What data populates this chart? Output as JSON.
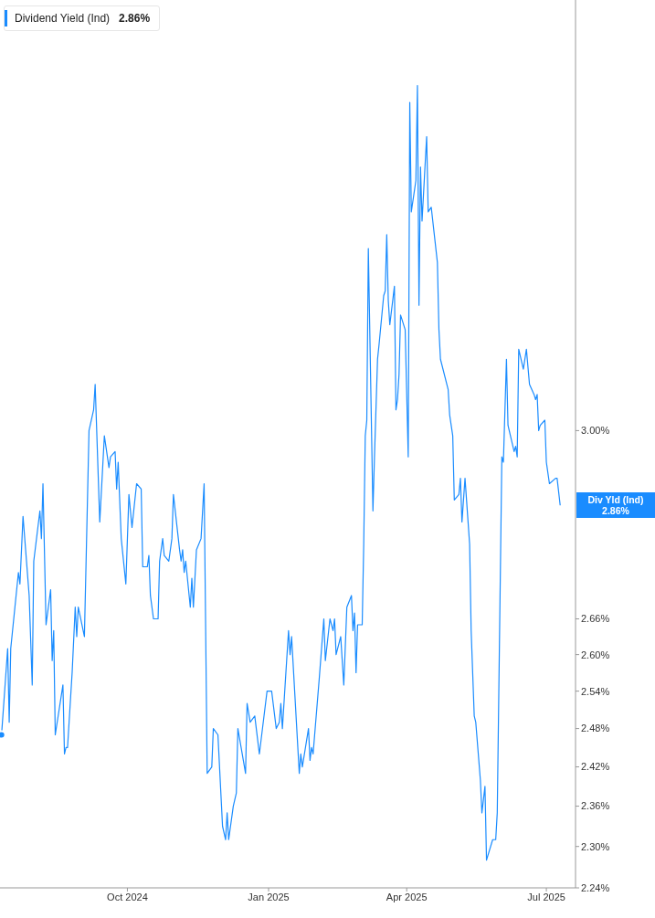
{
  "chart_data": {
    "type": "line",
    "legend": "top left",
    "log": "y",
    "annotations": [
      "Div Yld (Ind) 2.86%",
      "2.86%"
    ],
    "xlim": [
      "2024-07-10",
      "2025-07-20"
    ],
    "xticks": [
      {
        "value": "2024-10-01",
        "label": "Oct 2024"
      },
      {
        "value": "2025-01-01",
        "label": "Jan 2025"
      },
      {
        "value": "2025-04-01",
        "label": "Apr 2025"
      },
      {
        "value": "2025-07-01",
        "label": "Jul 2025"
      }
    ],
    "ylim": [
      2.24,
      3.95
    ],
    "yticks": [
      {
        "value": 2.24,
        "label": "2.24%"
      },
      {
        "value": 2.3,
        "label": "2.30%"
      },
      {
        "value": 2.36,
        "label": "2.36%"
      },
      {
        "value": 2.42,
        "label": "2.42%"
      },
      {
        "value": 2.48,
        "label": "2.48%"
      },
      {
        "value": 2.54,
        "label": "2.54%"
      },
      {
        "value": 2.6,
        "label": "2.60%"
      },
      {
        "value": 2.66,
        "label": "2.66%"
      },
      {
        "value": 3.0,
        "label": "3.00%"
      }
    ],
    "x": [
      "2024-07-11",
      "2024-07-15",
      "2024-07-16",
      "2024-07-17",
      "2024-07-22",
      "2024-07-23",
      "2024-07-25",
      "2024-07-29",
      "2024-07-31",
      "2024-08-01",
      "2024-08-05",
      "2024-08-06",
      "2024-08-07",
      "2024-08-09",
      "2024-08-12",
      "2024-08-13",
      "2024-08-14",
      "2024-08-15",
      "2024-08-20",
      "2024-08-21",
      "2024-08-22",
      "2024-08-23",
      "2024-08-26",
      "2024-08-28",
      "2024-08-29",
      "2024-08-30",
      "2024-09-03",
      "2024-09-06",
      "2024-09-09",
      "2024-09-10",
      "2024-09-13",
      "2024-09-16",
      "2024-09-19",
      "2024-09-20",
      "2024-09-23",
      "2024-09-24",
      "2024-09-25",
      "2024-09-27",
      "2024-09-30",
      "2024-10-02",
      "2024-10-04",
      "2024-10-07",
      "2024-10-10",
      "2024-10-11",
      "2024-10-14",
      "2024-10-15",
      "2024-10-16",
      "2024-10-18",
      "2024-10-21",
      "2024-10-22",
      "2024-10-24",
      "2024-10-25",
      "2024-10-28",
      "2024-10-30",
      "2024-10-31",
      "2024-11-04",
      "2024-11-05",
      "2024-11-06",
      "2024-11-07",
      "2024-11-08",
      "2024-11-11",
      "2024-11-12",
      "2024-11-13",
      "2024-11-15",
      "2024-11-18",
      "2024-11-20",
      "2024-11-22",
      "2024-11-25",
      "2024-11-26",
      "2024-11-29",
      "2024-12-02",
      "2024-12-04",
      "2024-12-05",
      "2024-12-06",
      "2024-12-09",
      "2024-12-11",
      "2024-12-12",
      "2024-12-17",
      "2024-12-18",
      "2024-12-20",
      "2024-12-23",
      "2024-12-26",
      "2024-12-31",
      "2025-01-02",
      "2025-01-03",
      "2025-01-06",
      "2025-01-08",
      "2025-01-09",
      "2025-01-10",
      "2025-01-14",
      "2025-01-15",
      "2025-01-16",
      "2025-01-21",
      "2025-01-22",
      "2025-01-23",
      "2025-01-27",
      "2025-01-28",
      "2025-01-29",
      "2025-01-30",
      "2025-02-03",
      "2025-02-06",
      "2025-02-07",
      "2025-02-10",
      "2025-02-12",
      "2025-02-13",
      "2025-02-14",
      "2025-02-17",
      "2025-02-19",
      "2025-02-21",
      "2025-02-24",
      "2025-02-25",
      "2025-02-26",
      "2025-02-27",
      "2025-02-28",
      "2025-03-03",
      "2025-03-04",
      "2025-03-05",
      "2025-03-06",
      "2025-03-07",
      "2025-03-10",
      "2025-03-11",
      "2025-03-13",
      "2025-03-14",
      "2025-03-17",
      "2025-03-18",
      "2025-03-19",
      "2025-03-20",
      "2025-03-21",
      "2025-03-24",
      "2025-03-25",
      "2025-03-26",
      "2025-03-27",
      "2025-03-28",
      "2025-03-31",
      "2025-04-02",
      "2025-04-03",
      "2025-04-04",
      "2025-04-07",
      "2025-04-08",
      "2025-04-09",
      "2025-04-10",
      "2025-04-11",
      "2025-04-14",
      "2025-04-15",
      "2025-04-17",
      "2025-04-21",
      "2025-04-22",
      "2025-04-23",
      "2025-04-28",
      "2025-04-29",
      "2025-05-01",
      "2025-05-02",
      "2025-05-05",
      "2025-05-06",
      "2025-05-07",
      "2025-05-09",
      "2025-05-12",
      "2025-05-13",
      "2025-05-15",
      "2025-05-16",
      "2025-05-19",
      "2025-05-20",
      "2025-05-22",
      "2025-05-23",
      "2025-05-27",
      "2025-05-29",
      "2025-05-30",
      "2025-06-02",
      "2025-06-03",
      "2025-06-05",
      "2025-06-06",
      "2025-06-10",
      "2025-06-11",
      "2025-06-12",
      "2025-06-13",
      "2025-06-16",
      "2025-06-18",
      "2025-06-20",
      "2025-06-23",
      "2025-06-24",
      "2025-06-25",
      "2025-06-26",
      "2025-06-27",
      "2025-06-30",
      "2025-07-01",
      "2025-07-03",
      "2025-07-07",
      "2025-07-08",
      "2025-07-10"
    ],
    "series": [
      {
        "name": "Dividend Yield (Ind)",
        "color": "#1a8cff",
        "values": [
          2.47,
          2.61,
          2.49,
          2.61,
          2.74,
          2.72,
          2.84,
          2.7,
          2.55,
          2.76,
          2.85,
          2.8,
          2.9,
          2.65,
          2.71,
          2.59,
          2.64,
          2.47,
          2.55,
          2.44,
          2.45,
          2.45,
          2.57,
          2.68,
          2.63,
          2.68,
          2.63,
          3.0,
          3.04,
          3.09,
          2.83,
          2.99,
          2.93,
          2.95,
          2.96,
          2.89,
          2.94,
          2.8,
          2.72,
          2.88,
          2.82,
          2.9,
          2.89,
          2.75,
          2.75,
          2.77,
          2.7,
          2.66,
          2.66,
          2.76,
          2.8,
          2.77,
          2.76,
          2.8,
          2.88,
          2.78,
          2.76,
          2.78,
          2.74,
          2.76,
          2.68,
          2.73,
          2.68,
          2.78,
          2.8,
          2.9,
          2.41,
          2.42,
          2.48,
          2.47,
          2.33,
          2.31,
          2.35,
          2.31,
          2.36,
          2.38,
          2.48,
          2.41,
          2.52,
          2.49,
          2.5,
          2.44,
          2.54,
          2.54,
          2.54,
          2.48,
          2.49,
          2.52,
          2.48,
          2.64,
          2.6,
          2.63,
          2.41,
          2.44,
          2.42,
          2.48,
          2.43,
          2.45,
          2.44,
          2.56,
          2.66,
          2.59,
          2.66,
          2.64,
          2.66,
          2.6,
          2.63,
          2.55,
          2.68,
          2.7,
          2.64,
          2.67,
          2.57,
          2.65,
          2.65,
          2.79,
          2.99,
          3.02,
          3.37,
          2.85,
          2.95,
          3.14,
          3.17,
          3.27,
          3.28,
          3.4,
          3.26,
          3.21,
          3.29,
          3.04,
          3.06,
          3.11,
          3.23,
          3.2,
          2.95,
          3.7,
          3.45,
          3.52,
          3.74,
          3.25,
          3.55,
          3.43,
          3.62,
          3.45,
          3.46,
          3.34,
          3.2,
          3.14,
          3.08,
          3.03,
          2.99,
          2.87,
          2.88,
          2.91,
          2.83,
          2.91,
          2.79,
          2.64,
          2.5,
          2.49,
          2.4,
          2.35,
          2.39,
          2.28,
          2.31,
          2.31,
          2.35,
          2.95,
          2.94,
          3.14,
          3.01,
          2.96,
          2.97,
          2.95,
          3.16,
          3.12,
          3.16,
          3.09,
          3.07,
          3.06,
          3.07,
          3.0,
          3.01,
          3.02,
          2.94,
          2.9,
          2.91,
          2.91,
          2.86
        ]
      }
    ]
  }
}
